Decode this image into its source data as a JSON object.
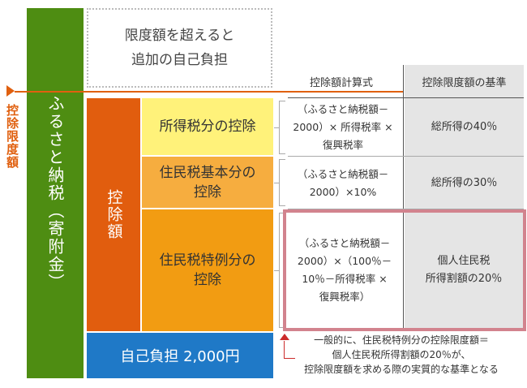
{
  "left_column": {
    "label": "ふるさと納税（寄附金）"
  },
  "limit": {
    "label": "控除限度額"
  },
  "extra_burden": {
    "line1": "限度額を超えると",
    "line2": "追加の自己負担"
  },
  "deduction_column": {
    "label": "控除額"
  },
  "deductions": {
    "income_tax": "所得税分の控除",
    "resident_basic_line1": "住民税基本分の",
    "resident_basic_line2": "控除",
    "resident_special_line1": "住民税特例分の",
    "resident_special_line2": "控除"
  },
  "self_burden": {
    "label": "自己負担 2,000円"
  },
  "table": {
    "header_formula": "控除額計算式",
    "header_standard": "控除限度額の基準",
    "rows": [
      {
        "formula_lines": [
          "（ふるさと納税額－",
          "2000）× 所得税率 ×",
          "復興税率"
        ],
        "standard_lines": [
          "総所得の40％"
        ]
      },
      {
        "formula_lines": [
          "（ふるさと納税額－",
          "2000）×10%"
        ],
        "standard_lines": [
          "総所得の30％"
        ]
      },
      {
        "formula_lines": [
          "（ふるさと納税額－",
          "2000）×（100％－",
          "10％－所得税率 ×",
          "復興税率）"
        ],
        "standard_lines": [
          "個人住民税",
          "所得割額の20％"
        ]
      }
    ]
  },
  "note": {
    "line1": "一般的に、住民税特例分の控除限度額＝",
    "line2": "個人住民税所得割額の20％が、",
    "line3": "控除限度額を求める際の実質的な基準となる"
  },
  "colors": {
    "green": "#4e8d12",
    "orange_dark": "#e15d0e",
    "yellow": "#fff27a",
    "orange_light": "#f6ad3f",
    "orange": "#f29c12",
    "blue": "#1f79c7",
    "limit_orange": "#e0600f",
    "highlight_pink": "#d2838e",
    "arrow_red": "#cc2b2b"
  }
}
